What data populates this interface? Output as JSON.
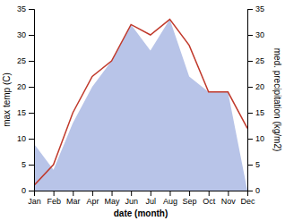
{
  "chart_data": {
    "type": "line",
    "xlabel": "date (month)",
    "ylabel": "max temp (C)",
    "y2label": "med. precipitation (kg/m2)",
    "categories": [
      "Jan",
      "Feb",
      "Mar",
      "Apr",
      "May",
      "Jun",
      "Jul",
      "Aug",
      "Sep",
      "Oct",
      "Nov",
      "Dec"
    ],
    "series": [
      {
        "type": "area",
        "axis": "y2",
        "color": "#b8c4e8",
        "values": [
          9,
          4,
          13,
          20,
          25,
          32,
          27,
          33,
          22,
          19,
          19,
          0
        ]
      },
      {
        "type": "line",
        "color": "#c0392b",
        "values": [
          1,
          5,
          15,
          22,
          25,
          32,
          30,
          33,
          28,
          19,
          19,
          12
        ]
      }
    ],
    "ylim": [
      0,
      35
    ],
    "yticks": [
      0,
      5,
      10,
      15,
      20,
      25,
      30,
      35
    ],
    "y2lim": [
      0,
      35
    ],
    "y2ticks": [
      0,
      5,
      10,
      15,
      20,
      25,
      30,
      35
    ],
    "grid": false
  }
}
